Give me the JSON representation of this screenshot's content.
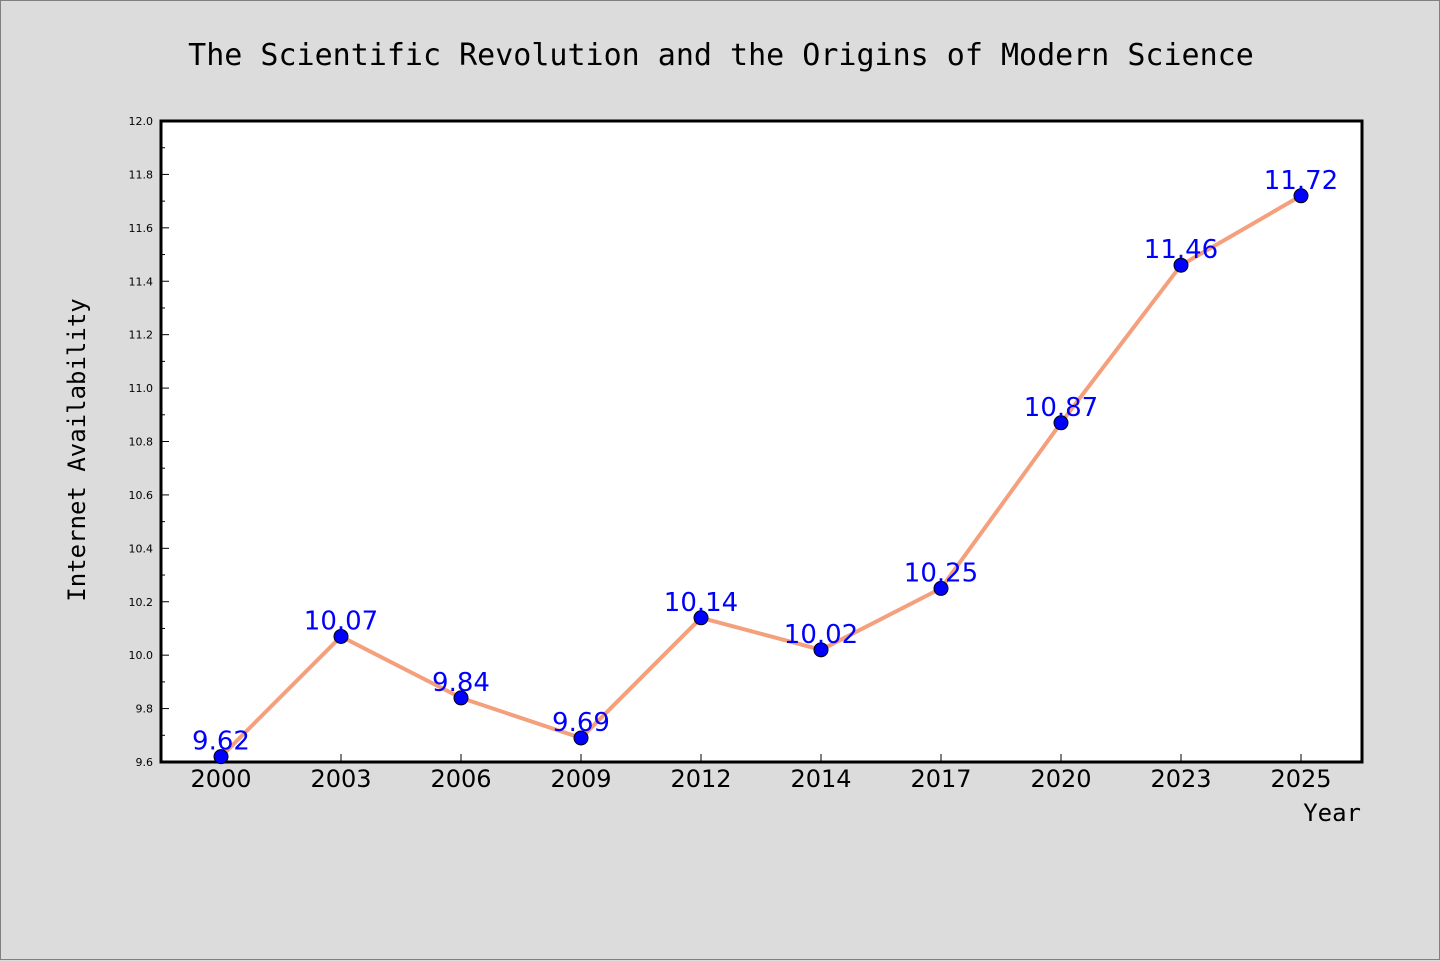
{
  "chart_data": {
    "type": "line",
    "title": "The Scientific Revolution and the Origins of Modern Science",
    "xlabel": "Year",
    "ylabel": "Internet Availability",
    "categories": [
      "2000",
      "2003",
      "2006",
      "2009",
      "2012",
      "2014",
      "2017",
      "2020",
      "2023",
      "2025"
    ],
    "series": [
      {
        "values": [
          9.62,
          10.07,
          9.84,
          9.69,
          10.14,
          10.02,
          10.25,
          10.87,
          11.46,
          11.72
        ],
        "line_color": "#f4a07c",
        "marker_color": "#0000ff"
      }
    ],
    "data_labels": [
      "9.62",
      "10.07",
      "9.84",
      "9.69",
      "10.14",
      "10.02",
      "10.25",
      "10.87",
      "11.46",
      "11.72"
    ],
    "ylim": [
      9.6,
      12.0
    ],
    "yticks": [
      "9.6",
      "9.8",
      "10.0",
      "10.2",
      "10.4",
      "10.6",
      "10.8",
      "11.0",
      "11.2",
      "11.4",
      "11.6",
      "11.8",
      "12.0"
    ],
    "grid": false,
    "legend": "none",
    "colors": {
      "background": "#dcdcdc",
      "plot_background": "#ffffff",
      "data_label": "#0000ff"
    }
  }
}
